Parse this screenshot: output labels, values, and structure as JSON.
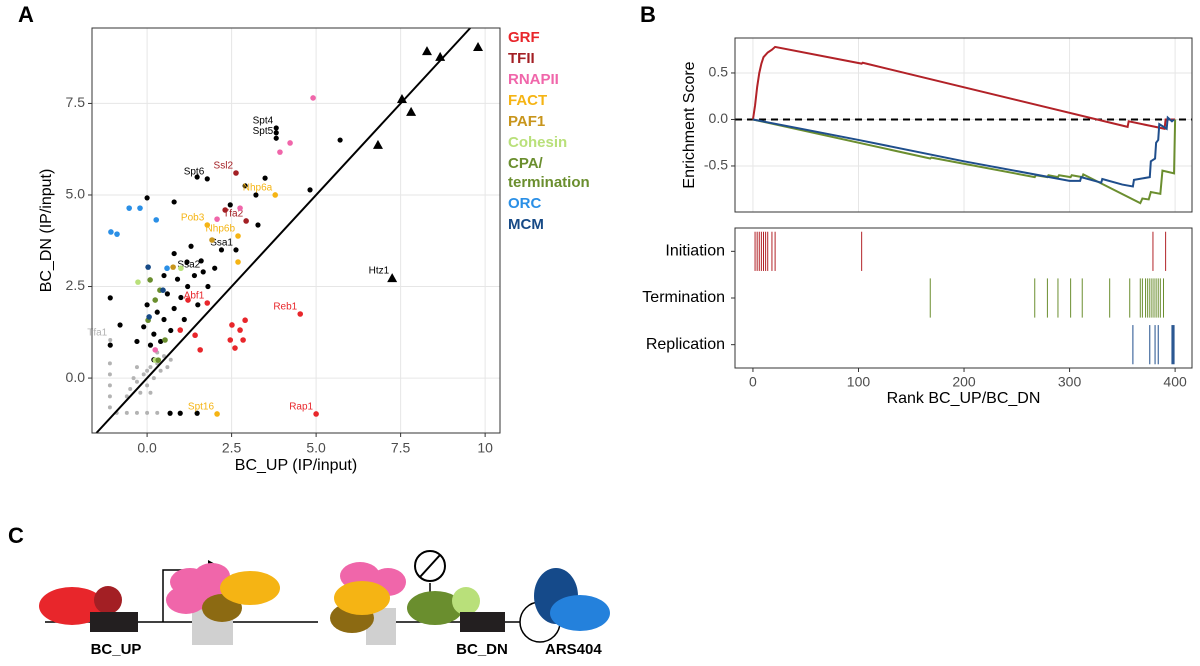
{
  "panel_labels": [
    "A",
    "B",
    "C"
  ],
  "chart_data": [
    {
      "type": "scatter",
      "xlabel": "BC_UP (IP/input)",
      "ylabel": "BC_DN (IP/input)",
      "xlim": [
        -1.63,
        10.44
      ],
      "ylim": [
        -1.5,
        9.56
      ],
      "xticks": [
        {
          "value": 0,
          "label": "0.0"
        },
        2.5,
        {
          "value": 5,
          "label": "5.0"
        },
        7.5,
        10
      ],
      "yticks": [
        {
          "value": 0,
          "label": "0.0"
        },
        2.5,
        {
          "value": 5,
          "label": "5.0"
        },
        7.5
      ],
      "grid": true,
      "diagonal": true,
      "other_series": [
        {
          "color": "#b3b3b3",
          "size": 2,
          "x": [
            -1.09,
            -0.5,
            -0.3,
            -0.1,
            0.1,
            0.3,
            0.5,
            -0.4,
            -0.2,
            0,
            0.2,
            0.4,
            0.6,
            -0.6,
            0.1,
            0.3,
            -0.3,
            0.7,
            0.0,
            -1.1,
            -1.1,
            -1.1,
            -1.1,
            -1.1,
            -0.9,
            -0.6,
            -0.3,
            0.0,
            0.3
          ],
          "y": [
            1.04,
            -0.3,
            -0.1,
            0.1,
            0.3,
            0.4,
            0.6,
            0.0,
            -0.4,
            -0.2,
            0.0,
            0.2,
            0.3,
            -0.5,
            -0.4,
            0.7,
            0.3,
            0.5,
            0.2,
            -0.8,
            -0.5,
            -0.2,
            0.1,
            0.4,
            -0.95,
            -0.95,
            -0.95,
            -0.95,
            -0.95
          ],
          "labels": [
            "Tfa1",
            null,
            null,
            null,
            null,
            null,
            null,
            null,
            null,
            null,
            null,
            null,
            null,
            null,
            null,
            null,
            null,
            null,
            null,
            null,
            null,
            null,
            null,
            null,
            null,
            null,
            null,
            null,
            null
          ]
        },
        {
          "color": "#000000",
          "size": 2.6,
          "x": [
            3.82,
            3.82,
            1.78,
            2.63,
            1.66,
            5.71,
            4.82,
            3.49,
            1.48,
            0.8,
            0,
            -1.09,
            -0.8,
            -1.09,
            0.68,
            0.98,
            1.48,
            2.9,
            3.22,
            2.46,
            3.28,
            1.18,
            0.2,
            0.5,
            0.8,
            1.0,
            1.2,
            0.3,
            0.6,
            0.9,
            1.4,
            1.6,
            0.1,
            0.4,
            0.7,
            1.1,
            1.5,
            -0.1,
            0.0,
            0.5,
            1.8,
            2.0,
            2.2,
            1.3,
            0.8,
            -0.3,
            0.2,
            3.82
          ],
          "y": [
            6.83,
            6.55,
            5.44,
            3.5,
            2.9,
            6.5,
            5.14,
            5.46,
            5.49,
            4.81,
            4.92,
            2.19,
            1.45,
            0.9,
            -0.96,
            -0.96,
            -0.96,
            5.25,
            5.0,
            4.73,
            4.18,
            3.17,
            1.2,
            1.6,
            1.9,
            2.2,
            2.5,
            1.8,
            2.3,
            2.7,
            2.8,
            3.2,
            0.9,
            1.0,
            1.3,
            1.6,
            2.0,
            1.4,
            2.0,
            2.8,
            2.5,
            3.0,
            3.5,
            3.6,
            3.4,
            1.0,
            0.5,
            6.7
          ],
          "labels": [
            "Spt4",
            "Spt5",
            "Spt6",
            "Ssa1",
            "Ssa2",
            null,
            null,
            null,
            null,
            null,
            null,
            null,
            null,
            null,
            null,
            null,
            null,
            null,
            null,
            null,
            null,
            null,
            null,
            null,
            null,
            null,
            null,
            null,
            null,
            null,
            null,
            null,
            null,
            null,
            null,
            null,
            null,
            null,
            null,
            null,
            null,
            null,
            null,
            null,
            null,
            null,
            null,
            null
          ]
        },
        {
          "color": "#000000",
          "marker": "triangle",
          "size": 5,
          "x": [
            8.28,
            8.67,
            9.79,
            7.54,
            7.81,
            6.83,
            7.25
          ],
          "y": [
            8.93,
            8.77,
            9.04,
            7.62,
            7.27,
            6.37,
            2.73
          ],
          "labels": [
            null,
            null,
            null,
            null,
            null,
            null,
            "Htz1"
          ]
        }
      ],
      "series": [
        {
          "name": "GRF",
          "color": "#e8262b",
          "x": [
            4.53,
            5.0,
            1.78,
            2.51,
            2.75,
            2.84,
            2.46,
            2.6,
            2.9,
            1.42,
            1.57,
            0.98,
            1.21
          ],
          "y": [
            1.75,
            -0.98,
            2.05,
            1.45,
            1.31,
            1.04,
            1.04,
            0.82,
            1.58,
            1.17,
            0.77,
            1.31,
            2.13
          ],
          "labels": [
            "Reb1",
            "Rap1",
            "Abf1",
            null,
            null,
            null,
            null,
            null,
            null,
            null,
            null,
            null,
            null
          ]
        },
        {
          "name": "TFII",
          "color": "#a31f24",
          "x": [
            2.63,
            2.93,
            2.31
          ],
          "y": [
            5.6,
            4.29,
            4.59
          ],
          "labels": [
            "Ssl2",
            "Tfa2",
            null
          ]
        },
        {
          "name": "RNAPII",
          "color": "#f066aa",
          "x": [
            4.91,
            4.23,
            3.93,
            2.75,
            2.07,
            0.24
          ],
          "y": [
            7.65,
            6.42,
            6.17,
            4.64,
            4.34,
            0.77
          ]
        },
        {
          "name": "FACT",
          "color": "#f5b414",
          "x": [
            3.79,
            1.78,
            2.69,
            2.07,
            2.69
          ],
          "y": [
            5.0,
            4.18,
            3.88,
            -0.98,
            3.17
          ],
          "labels": [
            "Nhp6a",
            "Pob3",
            "Nhp6b",
            "Spt16",
            null
          ]
        },
        {
          "name": "PAF1",
          "color": "#c8951c",
          "x": [
            1.92,
            0.77
          ],
          "y": [
            3.77,
            3.03
          ]
        },
        {
          "name": "Cohesin",
          "color": "#b9e07a",
          "x": [
            1.0,
            -0.27,
            0.24
          ],
          "y": [
            3.0,
            2.62,
            0.49
          ]
        },
        {
          "name": "CPA/ termination",
          "color": "#6a8e2e",
          "x": [
            0.09,
            0.24,
            0.38,
            0.03,
            0.53,
            0.33
          ],
          "y": [
            2.68,
            2.13,
            2.4,
            1.58,
            1.04,
            0.49
          ]
        },
        {
          "name": "ORC",
          "color": "#2a8fe6",
          "x": [
            -1.07,
            -0.89,
            -0.53,
            -0.21,
            0.27,
            0.59
          ],
          "y": [
            3.99,
            3.93,
            4.64,
            4.64,
            4.32,
            3.0
          ]
        },
        {
          "name": "MCM",
          "color": "#174a86",
          "x": [
            0.03,
            0.47,
            0.06
          ],
          "y": [
            3.03,
            2.4,
            1.67
          ]
        }
      ]
    },
    {
      "type": "line",
      "ylabel": "Enrichment Score",
      "xlim": [
        -17,
        416
      ],
      "ylim": [
        -0.995,
        0.876
      ],
      "xticks": [
        0,
        100,
        200,
        300,
        400
      ],
      "yticks": [
        0.5,
        {
          "value": 0,
          "label": "0.0"
        },
        -0.5
      ],
      "grid": true,
      "hline": 0,
      "series": [
        {
          "color": "#b22228",
          "x": [
            0,
            2,
            4,
            6,
            8,
            10,
            14,
            18,
            21,
            103,
            104,
            355,
            356,
            390,
            391,
            400
          ],
          "y": [
            0,
            0.15,
            0.35,
            0.5,
            0.6,
            0.67,
            0.72,
            0.75,
            0.78,
            0.6,
            0.61,
            -0.08,
            -0.02,
            -0.1,
            0,
            0
          ]
        },
        {
          "color": "#6b8e2f",
          "x": [
            0,
            168,
            169,
            267,
            268,
            279,
            280,
            289,
            290,
            301,
            302,
            312,
            313,
            367,
            369,
            375,
            377,
            386,
            388,
            399,
            400
          ],
          "y": [
            0,
            -0.42,
            -0.41,
            -0.62,
            -0.6,
            -0.62,
            -0.6,
            -0.62,
            -0.6,
            -0.62,
            -0.6,
            -0.62,
            -0.59,
            -0.9,
            -0.85,
            -0.86,
            -0.78,
            -0.8,
            -0.55,
            -0.58,
            0
          ]
        },
        {
          "color": "#1f4e8c",
          "x": [
            0,
            100,
            200,
            300,
            310,
            311,
            330,
            331,
            350,
            360,
            361,
            376,
            377,
            381,
            382,
            384,
            385,
            392,
            393,
            397,
            399
          ],
          "y": [
            0,
            -0.22,
            -0.45,
            -0.66,
            -0.66,
            -0.62,
            -0.68,
            -0.64,
            -0.7,
            -0.72,
            -0.65,
            -0.62,
            -0.45,
            -0.42,
            -0.25,
            -0.22,
            -0.05,
            -0.1,
            0.02,
            -0.02,
            0
          ]
        }
      ]
    },
    {
      "type": "rug",
      "xlabel": "Rank BC_UP/BC_DN",
      "xlim": [
        -17,
        416
      ],
      "xticks": [
        0,
        100,
        200,
        300,
        400
      ],
      "series": [
        {
          "name": "Initiation",
          "color": "#b22228",
          "hits": [
            2,
            4,
            6,
            8,
            10,
            12,
            14,
            18,
            21,
            103,
            379,
            391
          ]
        },
        {
          "name": "Termination",
          "color": "#6b8e2f",
          "hits": [
            168,
            267,
            279,
            289,
            301,
            312,
            338,
            357,
            367,
            369,
            372,
            374,
            376,
            378,
            380,
            382,
            384,
            386,
            389
          ]
        },
        {
          "name": "Replication",
          "color": "#1f4e8c",
          "hits": [
            360,
            376,
            381,
            384,
            397,
            398,
            399
          ]
        }
      ]
    }
  ],
  "diagram": {
    "labels": [
      "BC_UP",
      "BC_DN",
      "ARS404"
    ]
  }
}
